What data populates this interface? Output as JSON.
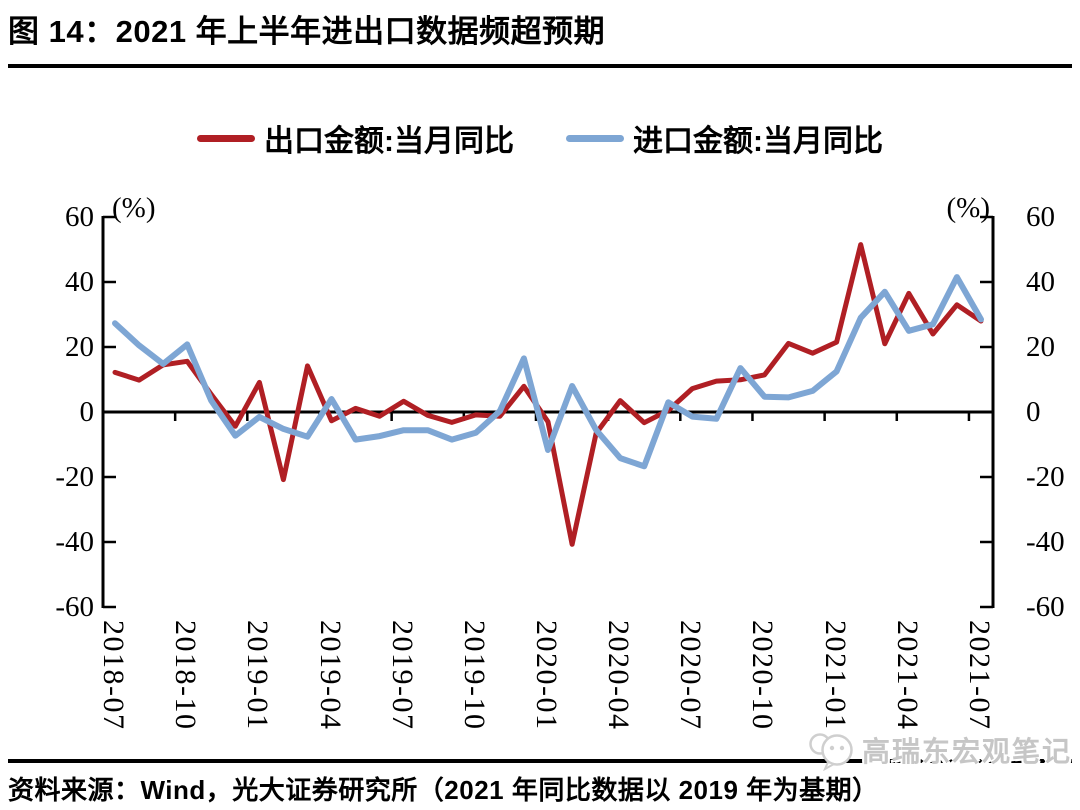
{
  "title": "图 14：2021 年上半年进出口数据频超预期",
  "footer": "资料来源：Wind，光大证券研究所（2021 年同比数据以 2019 年为基期）",
  "watermark": "高瑞东宏观笔记",
  "chart_data": {
    "type": "line",
    "title": "2021 年上半年进出口数据频超预期",
    "unit_label": "(%)",
    "ylim": [
      -60,
      60
    ],
    "yticks": [
      60,
      40,
      20,
      0,
      -20,
      -40,
      -60
    ],
    "grid": false,
    "legend_position": "top",
    "dual_axis": true,
    "x": [
      "2018-07",
      "2018-08",
      "2018-09",
      "2018-10",
      "2018-11",
      "2018-12",
      "2019-01",
      "2019-02",
      "2019-03",
      "2019-04",
      "2019-05",
      "2019-06",
      "2019-07",
      "2019-08",
      "2019-09",
      "2019-10",
      "2019-11",
      "2019-12",
      "2020-01",
      "2020-02",
      "2020-03",
      "2020-04",
      "2020-05",
      "2020-06",
      "2020-07",
      "2020-08",
      "2020-09",
      "2020-10",
      "2020-11",
      "2020-12",
      "2021-01",
      "2021-02",
      "2021-03",
      "2021-04",
      "2021-05",
      "2021-06",
      "2021-07"
    ],
    "x_tick_labels": [
      "2018-07",
      "2018-10",
      "2019-01",
      "2019-04",
      "2019-07",
      "2019-10",
      "2020-01",
      "2020-04",
      "2020-07",
      "2020-10",
      "2021-01",
      "2021-04",
      "2021-07"
    ],
    "series": [
      {
        "name": "出口金额:当月同比",
        "color": "#b01f24",
        "values": [
          12.2,
          9.8,
          14.5,
          15.6,
          5.4,
          -4.4,
          9.1,
          -20.8,
          14.2,
          -2.7,
          1.1,
          -1.3,
          3.3,
          -1.0,
          -3.2,
          -0.9,
          -1.3,
          7.9,
          -3.0,
          -40.7,
          -6.6,
          3.5,
          -3.3,
          0.5,
          7.2,
          9.5,
          9.9,
          11.4,
          21.1,
          18.1,
          21.5,
          51.5,
          21.0,
          36.5,
          24.0,
          33.0,
          28.0
        ]
      },
      {
        "name": "进口金额:当月同比",
        "color": "#7ea6d4",
        "values": [
          27.3,
          20.5,
          14.8,
          20.8,
          3.5,
          -7.3,
          -1.5,
          -5.2,
          -7.6,
          4.0,
          -8.5,
          -7.4,
          -5.6,
          -5.6,
          -8.5,
          -6.4,
          0.3,
          16.5,
          -11.7,
          8.0,
          -5.5,
          -14.2,
          -16.7,
          3.0,
          -1.4,
          -2.1,
          13.5,
          4.7,
          4.5,
          6.5,
          12.5,
          29.0,
          37.0,
          25.0,
          27.0,
          41.5,
          28.5
        ]
      }
    ]
  }
}
